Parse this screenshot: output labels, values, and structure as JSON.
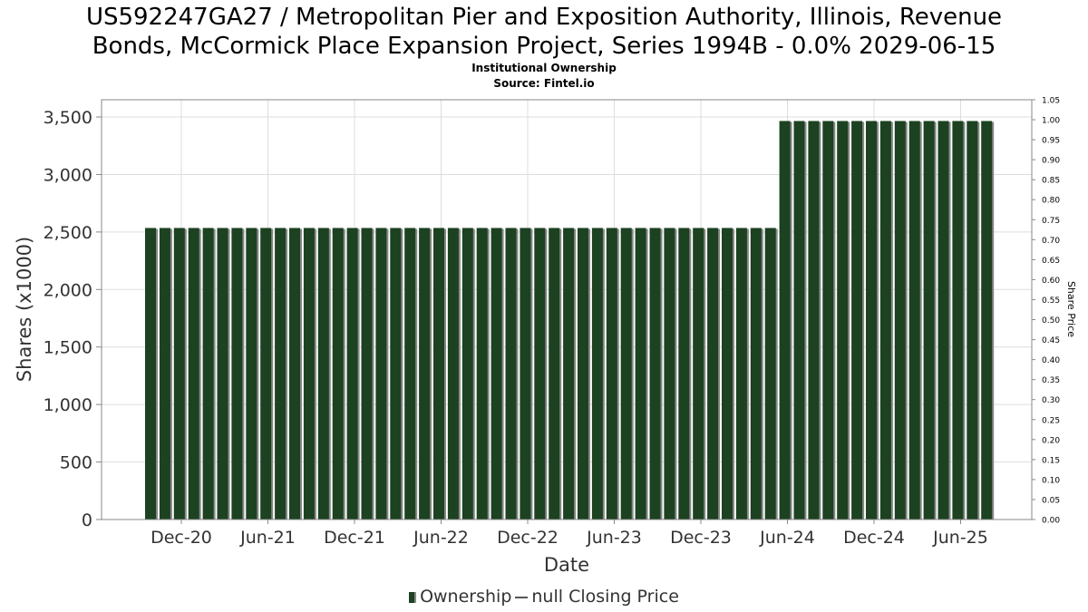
{
  "header": {
    "title_line1": "US592247GA27 / Metropolitan Pier and Exposition Authority, Illinois, Revenue",
    "title_line2": "Bonds, McCormick Place Expansion Project, Series 1994B - 0.0% 2029-06-15",
    "subtitle_line1": "Institutional Ownership",
    "subtitle_line2": "Source: Fintel.io"
  },
  "legend": {
    "ownership_label": "Ownership",
    "price_label": "null Closing Price"
  },
  "colors": {
    "bar": "#1c4221",
    "bar_shadow": "#888888",
    "grid": "#dddddd"
  },
  "chart_data": {
    "type": "bar",
    "xlabel": "Date",
    "ylabel": "Shares (x1000)",
    "y2label": "Share Price",
    "ylim": [
      0,
      3650
    ],
    "y2lim": [
      0,
      1.05
    ],
    "yticks": [
      "0",
      "500",
      "1,000",
      "1,500",
      "2,000",
      "2,500",
      "3,000",
      "3,500"
    ],
    "y2ticks": [
      "0.00",
      "0.05",
      "0.10",
      "0.15",
      "0.20",
      "0.25",
      "0.30",
      "0.35",
      "0.40",
      "0.45",
      "0.50",
      "0.55",
      "0.60",
      "0.65",
      "0.70",
      "0.75",
      "0.80",
      "0.85",
      "0.90",
      "0.95",
      "1.00",
      "1.05"
    ],
    "xticks": [
      "Dec-20",
      "Jun-21",
      "Dec-21",
      "Jun-22",
      "Dec-22",
      "Jun-23",
      "Dec-23",
      "Jun-24",
      "Dec-24",
      "Jun-25"
    ],
    "grid": true,
    "legend_position": "bottom",
    "series": [
      {
        "name": "Ownership",
        "values": [
          2535,
          2535,
          2535,
          2535,
          2535,
          2535,
          2535,
          2535,
          2535,
          2535,
          2535,
          2535,
          2535,
          2535,
          2535,
          2535,
          2535,
          2535,
          2535,
          2535,
          2535,
          2535,
          2535,
          2535,
          2535,
          2535,
          2535,
          2535,
          2535,
          2535,
          2535,
          2535,
          2535,
          2535,
          2535,
          2535,
          2535,
          2535,
          2535,
          2535,
          2535,
          2535,
          2535,
          2535,
          3465,
          3465,
          3465,
          3465,
          3465,
          3465,
          3465,
          3465,
          3465,
          3465,
          3465,
          3465,
          3465,
          3465,
          3465
        ]
      }
    ]
  }
}
